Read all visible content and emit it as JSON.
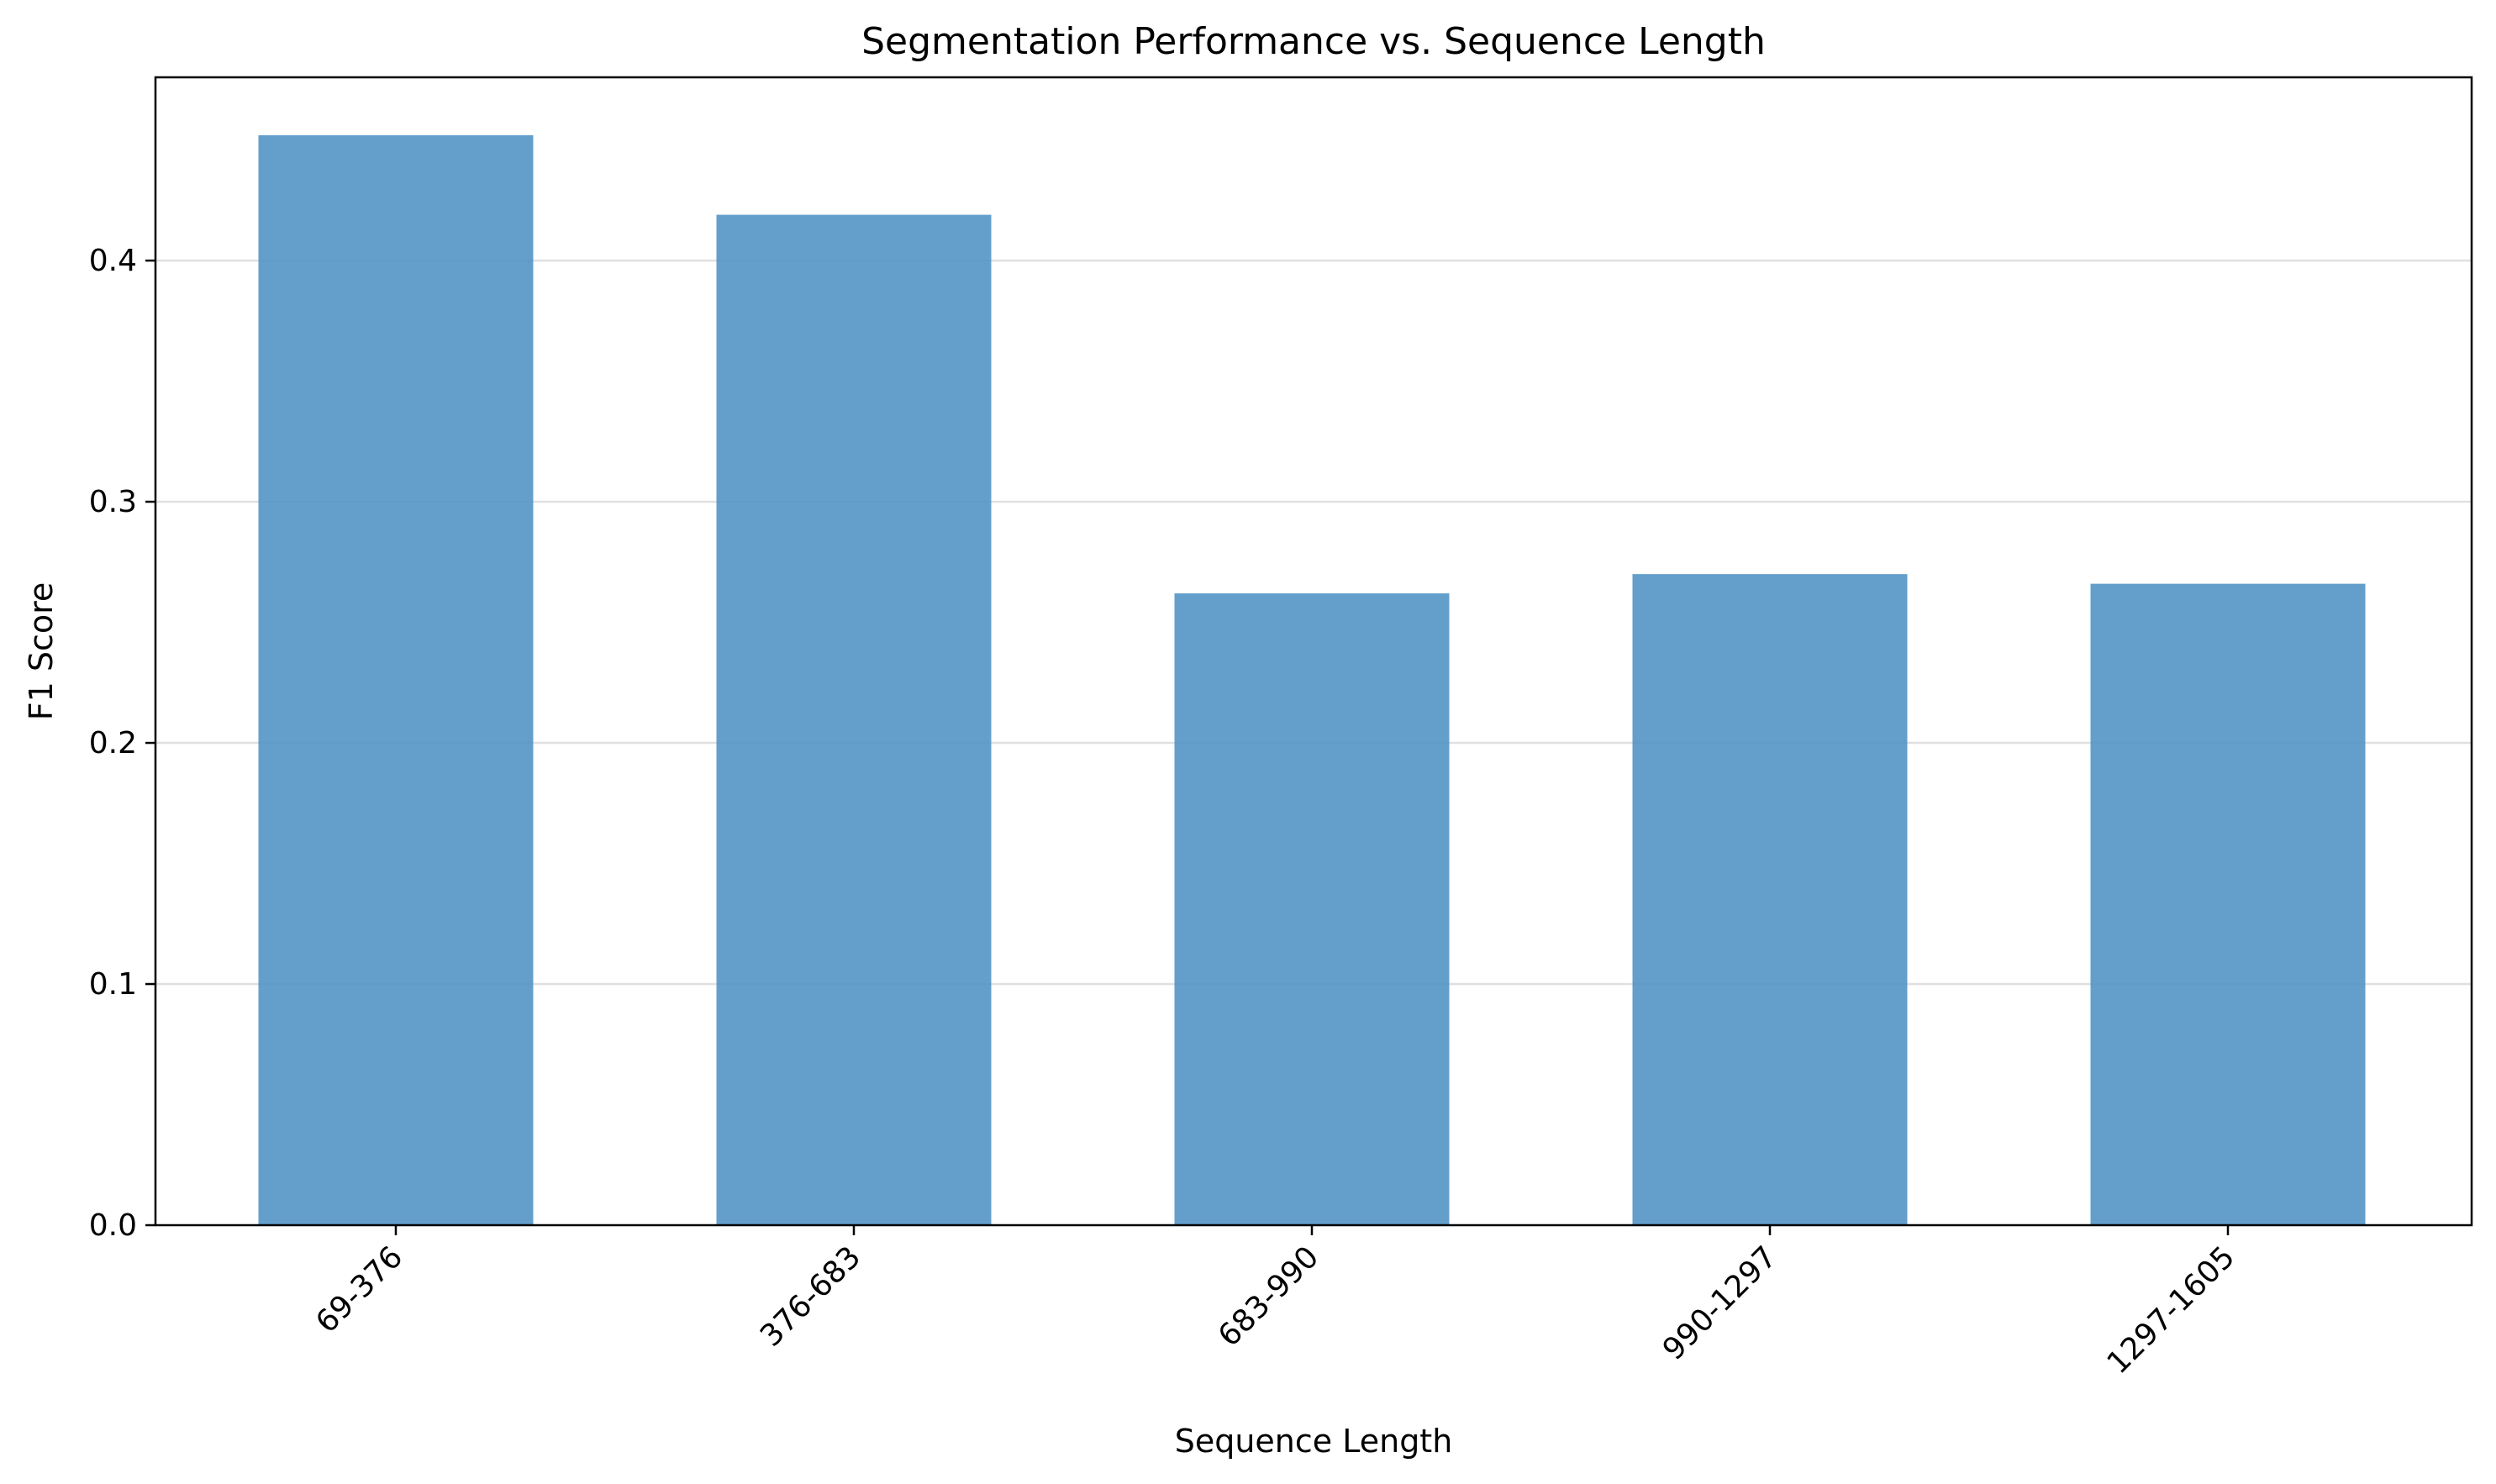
{
  "chart_data": {
    "type": "bar",
    "title": "Segmentation Performance vs. Sequence Length",
    "xlabel": "Sequence Length",
    "ylabel": "F1 Score",
    "categories": [
      "69-376",
      "376-683",
      "683-990",
      "990-1297",
      "1297-1605"
    ],
    "values": [
      0.452,
      0.419,
      0.262,
      0.27,
      0.266
    ],
    "ylim": [
      0,
      0.476
    ],
    "yticks": [
      0.0,
      0.1,
      0.2,
      0.3,
      0.4
    ],
    "ytick_labels": [
      "0.0",
      "0.1",
      "0.2",
      "0.3",
      "0.4"
    ],
    "grid": "y",
    "bar_color": "#4f92c5",
    "bar_opacity": 0.88
  }
}
